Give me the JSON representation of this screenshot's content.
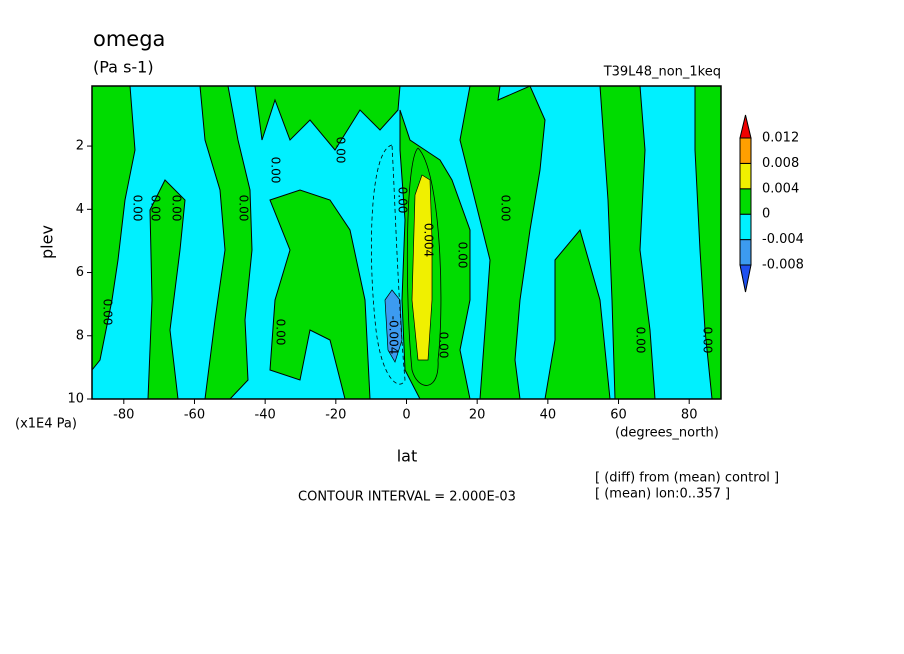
{
  "chart_data": {
    "type": "contour",
    "title": "omega",
    "subtitle": "(Pa s-1)",
    "run_label": "T39L48_non_1keq",
    "x_label": "lat",
    "x_units": "(degrees_north)",
    "y_label": "plev",
    "y_units": "(x1E4 Pa)",
    "xlim": [
      -89,
      89
    ],
    "xticks": [
      -80,
      -60,
      -40,
      -20,
      0,
      20,
      40,
      60,
      80
    ],
    "ylim": [
      10,
      0.1
    ],
    "yticks": [
      2,
      4,
      6,
      8,
      10
    ],
    "colorbar": {
      "levels": [
        -0.008,
        -0.004,
        0,
        0.004,
        0.008,
        0.012
      ],
      "colors": [
        "#1e50f0",
        "#3c9bf0",
        "#00f0ff",
        "#00dc00",
        "#f0f000",
        "#ff9f00",
        "#f00000"
      ]
    },
    "contour_labels": [
      "0.00",
      "0.00",
      "0.00",
      "0.00",
      "0.00",
      "0.00",
      "0.00",
      "0.004",
      "0.00",
      "0.00",
      "0.00",
      "0.00",
      "-0.004",
      "0.00",
      "0.00",
      "0.00"
    ],
    "contour_interval": "CONTOUR INTERVAL = 2.000E-03",
    "notes": [
      "[ (diff) from (mean) control ]",
      "[ (mean) lon:0..357 ]"
    ]
  }
}
